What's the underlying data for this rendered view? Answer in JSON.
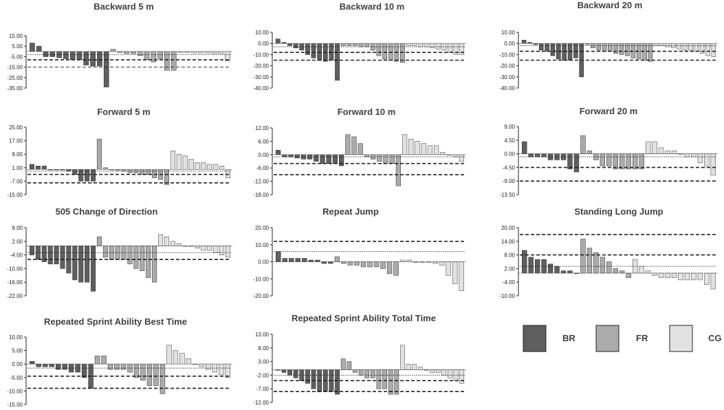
{
  "legend": [
    {
      "label": "BR",
      "color": "#5f5f5f"
    },
    {
      "label": "FR",
      "color": "#ababab"
    },
    {
      "label": "CG",
      "color": "#e2e2e2"
    }
  ],
  "chart_data": [
    {
      "type": "bar",
      "title": "Backward 5 m",
      "ylim": [
        -35,
        15
      ],
      "yticks": [
        "15.00",
        "5.00",
        "-5.00",
        "-15.00",
        "-25.00",
        "-35.00"
      ],
      "series": [
        {
          "name": "BR",
          "values": [
            8,
            5,
            -5,
            -5,
            -6,
            -7,
            -8,
            -8,
            -13,
            -14,
            -14,
            -34
          ]
        },
        {
          "name": "FR",
          "values": [
            2,
            -1,
            -2,
            -2,
            -4,
            -8,
            -10,
            -7,
            -18,
            -18
          ]
        },
        {
          "name": "CG",
          "values": [
            -1,
            -1,
            -1.5,
            -1.5,
            -1.5,
            -2,
            -2,
            -9
          ]
        }
      ],
      "ref_lines": [
        {
          "style": "dotted",
          "value": -3
        },
        {
          "style": "dashed",
          "value": -8
        },
        {
          "style": "thin-dashed",
          "value": -15
        }
      ]
    },
    {
      "type": "bar",
      "title": "Backward 10 m",
      "ylim": [
        -40,
        10
      ],
      "yticks": [
        "10.00",
        "0.00",
        "-10.00",
        "-20.00",
        "-30.00",
        "-40.00"
      ],
      "series": [
        {
          "name": "BR",
          "values": [
            4,
            1,
            -2,
            -4,
            -6,
            -10,
            -13,
            -15,
            -16,
            -15,
            -33
          ]
        },
        {
          "name": "FR",
          "values": [
            -2,
            -2,
            -2,
            -3,
            -3,
            -6,
            -11,
            -14,
            -15,
            -16,
            -17
          ]
        },
        {
          "name": "CG",
          "values": [
            -2,
            -2,
            -3,
            -3,
            -4,
            -5,
            -6,
            -8,
            -10,
            -10
          ]
        }
      ],
      "ref_lines": [
        {
          "style": "dotted",
          "value": -3
        },
        {
          "style": "dashed",
          "value": -8
        },
        {
          "style": "dashed",
          "value": -15
        }
      ]
    },
    {
      "type": "bar",
      "title": "Backward 20 m",
      "ylim": [
        -40,
        10
      ],
      "yticks": [
        "10.00",
        "0.00",
        "-10.00",
        "-20.00",
        "-30.00",
        "-40.00"
      ],
      "series": [
        {
          "name": "BR",
          "values": [
            3,
            1,
            -1,
            -6,
            -7,
            -11,
            -14,
            -15,
            -15,
            -13,
            -30
          ]
        },
        {
          "name": "FR",
          "values": [
            -1,
            -4,
            -6,
            -7,
            -7,
            -9,
            -10,
            -11,
            -13,
            -14,
            -15,
            -16
          ]
        },
        {
          "name": "CG",
          "values": [
            -2,
            -2,
            -3,
            -4,
            -5,
            -6,
            -6,
            -7,
            -9,
            -11,
            -12
          ]
        }
      ],
      "ref_lines": [
        {
          "style": "dotted",
          "value": -2
        },
        {
          "style": "dashed",
          "value": -7
        },
        {
          "style": "dashed",
          "value": -15
        }
      ]
    },
    {
      "type": "bar",
      "title": "Forward 5 m",
      "ylim": [
        -15,
        25
      ],
      "yticks": [
        "25.00",
        "17.00",
        "9.00",
        "1.00",
        "-7.00",
        "-15.00"
      ],
      "series": [
        {
          "name": "BR",
          "values": [
            3,
            2,
            2,
            0,
            0,
            0,
            -1,
            -3,
            -7,
            -7,
            -7
          ]
        },
        {
          "name": "FR",
          "values": [
            18,
            1,
            0,
            -0.5,
            -1,
            -2,
            -2,
            -3,
            -3,
            -5,
            -6,
            -9
          ]
        },
        {
          "name": "CG",
          "values": [
            11,
            9,
            8,
            6,
            4,
            4,
            3,
            3,
            2,
            -5
          ]
        }
      ],
      "ref_lines": [
        {
          "style": "dotted",
          "value": -1
        },
        {
          "style": "dashed",
          "value": -3
        },
        {
          "style": "dashed",
          "value": -8
        }
      ]
    },
    {
      "type": "bar",
      "title": "Forward 10 m",
      "ylim": [
        -18,
        12
      ],
      "yticks": [
        "12.00",
        "6.00",
        "0.00",
        "-6.00",
        "-12.00",
        "-18.00"
      ],
      "series": [
        {
          "name": "BR",
          "values": [
            2,
            -1,
            -1,
            -1.5,
            -2,
            -2,
            -3,
            -4,
            -4,
            -4,
            -5
          ]
        },
        {
          "name": "FR",
          "values": [
            9,
            8,
            5,
            -1,
            -2,
            -3,
            -4,
            -4,
            -14
          ]
        },
        {
          "name": "CG",
          "values": [
            9,
            7,
            6,
            5,
            4,
            4,
            1,
            0,
            -1,
            -3
          ]
        }
      ],
      "ref_lines": [
        {
          "style": "dotted",
          "value": -1
        },
        {
          "style": "dashed",
          "value": -4
        },
        {
          "style": "dashed",
          "value": -9
        }
      ]
    },
    {
      "type": "bar",
      "title": "Forward 20 m",
      "ylim": [
        -13.5,
        9
      ],
      "yticks": [
        "9.00",
        "4.50",
        "0.00",
        "-4.50",
        "-9.00",
        "-13.50"
      ],
      "series": [
        {
          "name": "BR",
          "values": [
            4,
            -1,
            -1,
            -1,
            -2,
            -2,
            -2,
            -5,
            -6
          ]
        },
        {
          "name": "FR",
          "values": [
            6,
            1,
            -2,
            -4,
            -4,
            -5,
            -5,
            -5,
            -5,
            -5
          ]
        },
        {
          "name": "CG",
          "values": [
            4,
            4,
            2,
            1,
            1,
            0,
            -1,
            -1,
            -3,
            -4,
            -7
          ]
        }
      ],
      "ref_lines": [
        {
          "style": "dotted",
          "value": -1
        },
        {
          "style": "dashed",
          "value": -4.5
        },
        {
          "style": "dashed",
          "value": -9
        }
      ]
    },
    {
      "type": "bar",
      "title": "505 Change of Direction",
      "ylim": [
        -22,
        8
      ],
      "yticks": [
        "8.00",
        "2.00",
        "-4.00",
        "-10.00",
        "-16.00",
        "-22.00"
      ],
      "series": [
        {
          "name": "BR",
          "values": [
            -4,
            -6,
            -7,
            -8,
            -8,
            -10,
            -12,
            -15,
            -16,
            -16,
            -20
          ]
        },
        {
          "name": "FR",
          "values": [
            4,
            -5,
            -6,
            -6,
            -6,
            -8,
            -10,
            -11,
            -14,
            -16
          ]
        },
        {
          "name": "CG",
          "values": [
            5,
            4,
            2,
            1,
            0,
            0,
            -1,
            -2,
            -2,
            -3,
            -4,
            -5
          ]
        }
      ],
      "ref_lines": [
        {
          "style": "dotted",
          "value": -3
        },
        {
          "style": "dashed",
          "value": -6
        }
      ]
    },
    {
      "type": "bar",
      "title": "Repeat Jump",
      "ylim": [
        -20,
        20
      ],
      "yticks": [
        "20.00",
        "10.00",
        "0.00",
        "-10.00",
        "-20.00"
      ],
      "series": [
        {
          "name": "BR",
          "values": [
            6,
            2,
            2,
            2,
            2,
            1,
            1,
            -1,
            -1
          ]
        },
        {
          "name": "FR",
          "values": [
            3,
            -1,
            -2,
            -2,
            -3,
            -3,
            -3,
            -4,
            -7,
            -8
          ]
        },
        {
          "name": "CG",
          "values": [
            1,
            1,
            0,
            0,
            0,
            -1,
            -2,
            -8,
            -13,
            -17
          ]
        }
      ],
      "ref_lines": [
        {
          "style": "dashed",
          "value": 12
        },
        {
          "style": "dotted",
          "value": 6
        }
      ]
    },
    {
      "type": "bar",
      "title": "Standing Long Jump",
      "ylim": [
        -10,
        20
      ],
      "yticks": [
        "20.00",
        "14.00",
        "8.00",
        "2.00",
        "-4.00",
        "-10.00"
      ],
      "series": [
        {
          "name": "BR",
          "values": [
            10,
            7,
            6,
            6,
            4,
            3,
            1,
            1,
            0
          ]
        },
        {
          "name": "FR",
          "values": [
            15,
            11,
            9,
            7,
            5,
            2,
            1,
            -2
          ]
        },
        {
          "name": "CG",
          "values": [
            6,
            3,
            1,
            -1,
            -2,
            -2,
            -2,
            -3,
            -3,
            -3,
            -3,
            -5,
            -7
          ]
        }
      ],
      "ref_lines": [
        {
          "style": "dashed",
          "value": 17
        },
        {
          "style": "dashed",
          "value": 8
        },
        {
          "style": "dotted",
          "value": 3
        }
      ]
    },
    {
      "type": "bar",
      "title": "Repeated Sprint Ability Best Time",
      "ylim": [
        -15,
        10
      ],
      "yticks": [
        "10.00",
        "5.00",
        "0.00",
        "-5.00",
        "-10.00",
        "-15.00"
      ],
      "series": [
        {
          "name": "BR",
          "values": [
            1,
            -1,
            -1,
            -1,
            -2,
            -2,
            -3,
            -3,
            -5,
            -9
          ]
        },
        {
          "name": "FR",
          "values": [
            3,
            3,
            -2,
            -2,
            -2,
            -3,
            -5,
            -6,
            -8,
            -8,
            -11
          ]
        },
        {
          "name": "CG",
          "values": [
            7,
            5,
            4,
            2,
            0,
            -1,
            -2,
            -3,
            -4,
            -5
          ]
        }
      ],
      "ref_lines": [
        {
          "style": "dotted",
          "value": -1.5
        },
        {
          "style": "dashed",
          "value": -4.5
        },
        {
          "style": "dashed",
          "value": -9
        }
      ]
    },
    {
      "type": "bar",
      "title": "Repeated Sprint Ability Total Time",
      "ylim": [
        -12,
        13
      ],
      "yticks": [
        "13.00",
        "8.00",
        "3.00",
        "-2.00",
        "-7.00",
        "-12.00"
      ],
      "series": [
        {
          "name": "BR",
          "values": [
            0,
            -1,
            -2,
            -3,
            -4,
            -5,
            -7,
            -8,
            -8,
            -8,
            -9
          ]
        },
        {
          "name": "FR",
          "values": [
            4,
            3,
            -1,
            -2,
            -3,
            -3,
            -7,
            -7,
            -9,
            -9
          ]
        },
        {
          "name": "CG",
          "values": [
            9,
            2,
            2,
            1,
            0,
            -1,
            -1,
            -2,
            -3,
            -4,
            -5
          ]
        }
      ],
      "ref_lines": [
        {
          "style": "dotted",
          "value": -2
        },
        {
          "style": "dashed",
          "value": -4
        },
        {
          "style": "dashed",
          "value": -8
        }
      ]
    }
  ]
}
